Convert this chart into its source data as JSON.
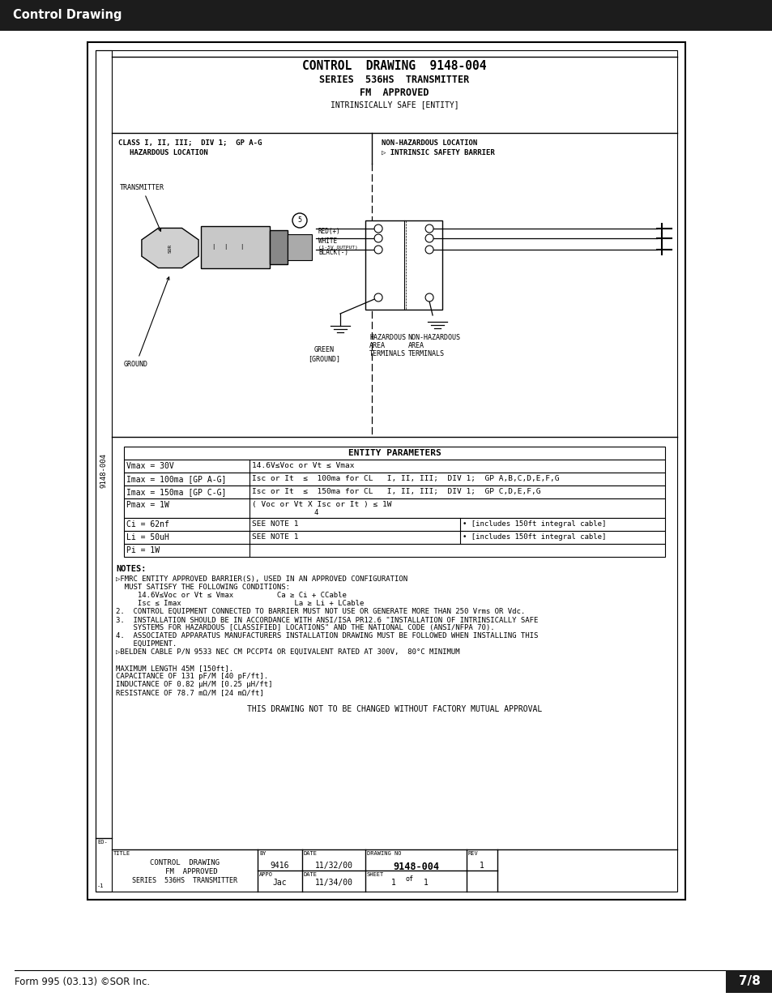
{
  "page_bg": "#ffffff",
  "header_bg": "#1c1c1c",
  "header_text": "Control Drawing",
  "header_text_color": "#ffffff",
  "footer_left": "Form 995 (03.13) ©SOR Inc.",
  "footer_right": "7/8",
  "footer_bg": "#1c1c1c",
  "footer_text_color": "#ffffff",
  "title_line1": "CONTROL  DRAWING  9148-004",
  "title_line2": "SERIES  536HS  TRANSMITTER",
  "title_line3": "FM  APPROVED",
  "subtitle": "INTRINSICALLY SAFE [ENTITY]",
  "drawing_number_vertical": "9148-004",
  "entity_params_title": "ENTITY PARAMETERS",
  "entity_rows": [
    [
      "Vmax = 30V",
      "14.6V≤Voc or Vt ≤ Vmax",
      ""
    ],
    [
      "Imax = 100ma [GP A-G]",
      "Isc or It  ≤  100ma for CL   I, II, III;  DIV 1;  GP A,B,C,D,E,F,G",
      ""
    ],
    [
      "Imax = 150ma [GP C-G]",
      "Isc or It  ≤  150ma for CL   I, II, III;  DIV 1;  GP C,D,E,F,G",
      ""
    ],
    [
      "Pmax = 1W",
      "( Voc or Vt X Isc or It ) ≤ 1W",
      ""
    ],
    [
      "Ci = 62nf",
      "SEE NOTE 1",
      "• [includes 150ft integral cable]"
    ],
    [
      "Li = 50uH",
      "SEE NOTE 1",
      "• [includes 150ft integral cable]"
    ],
    [
      "Pi = 1W",
      "",
      ""
    ]
  ],
  "notes": [
    "▷FMRC ENTITY APPROVED BARRIER(S), USED IN AN APPROVED CONFIGURATION",
    "  MUST SATISFY THE FOLLOWING CONDITIONS:",
    "     14.6V≤Voc or Vt ≤ Vmax          Ca ≥ Ci + CCable",
    "     Isc ≤ Imax                          La ≥ Li + LCable",
    "2.  CONTROL EQUIPMENT CONNECTED TO BARRIER MUST NOT USE OR GENERATE MORE THAN 250 Vrms OR Vdc.",
    "3.  INSTALLATION SHOULD BE IN ACCORDANCE WITH ANSI/ISA PR12.6 \"INSTALLATION OF INTRINSICALLY SAFE",
    "    SYSTEMS FOR HAZARDOUS [CLASSIFIED] LOCATIONS\" AND THE NATIONAL CODE (ANSI/NFPA 70).",
    "4.  ASSOCIATED APPARATUS MANUFACTURERS INSTALLATION DRAWING MUST BE FOLLOWED WHEN INSTALLING THIS",
    "    EQUIPMENT.",
    "▷BELDEN CABLE P/N 9533 NEC CM PCCPT4 OR EQUIVALENT RATED AT 300V,  80°C MINIMUM",
    "",
    "MAXIMUM LENGTH 45M [150ft].",
    "CAPACITANCE OF 131 pF/M [40 pF/ft].",
    "INDUCTANCE OF 0.82 μH/M [0.25 μH/ft]",
    "RESISTANCE OF 78.7 mΩ/M [24 mΩ/ft]"
  ],
  "footer_notice": "THIS DRAWING NOT TO BE CHANGED WITHOUT FACTORY MUTUAL APPROVAL",
  "title_block_by": "9416",
  "title_block_date1": "11/32/00",
  "title_block_appo": "Jac",
  "title_block_date2": "11/34/00",
  "title_block_drwno": "9148-004",
  "title_block_rev": "1",
  "title_block_sheet": "1",
  "title_block_of": "1"
}
